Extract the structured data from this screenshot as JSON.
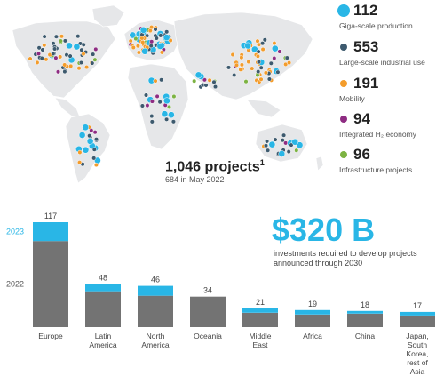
{
  "colors": {
    "giga": "#29b6e6",
    "industrial": "#3d5a6e",
    "mobility": "#f39c2c",
    "integrated": "#8e2c82",
    "infrastructure": "#7cb342",
    "bar_2022": "#737373",
    "bar_2023": "#29b6e6",
    "invest": "#29b6e6"
  },
  "legend": [
    {
      "count": "112",
      "label": "Giga-scale production",
      "color": "#29b6e6",
      "icon": "large-blue-circle"
    },
    {
      "count": "553",
      "label": "Large-scale industrial use",
      "color": "#3d5a6e",
      "icon": "dark-dot"
    },
    {
      "count": "191",
      "label": "Mobility",
      "color": "#f39c2c",
      "icon": "orange-dot"
    },
    {
      "count": "94",
      "label": "Integrated H₂ economy",
      "color": "#8e2c82",
      "icon": "purple-dot"
    },
    {
      "count": "96",
      "label": "Infrastructure projects",
      "color": "#7cb342",
      "icon": "green-dot"
    }
  ],
  "map": {
    "total": "1,046 projects",
    "footnote_mark": "1",
    "subtitle": "684 in May 2022"
  },
  "investment": {
    "amount": "$320 B",
    "text": "investments required to develop projects announced through 2030"
  },
  "chart_data": {
    "type": "bar",
    "stacked": true,
    "categories": [
      "Europe",
      "Latin America",
      "North America",
      "Oceania",
      "Middle East",
      "Africa",
      "China",
      "Japan, South Korea, rest of Asia"
    ],
    "category_lines": [
      [
        "Europe"
      ],
      [
        "Latin",
        "America"
      ],
      [
        "North",
        "America"
      ],
      [
        "Oceania"
      ],
      [
        "Middle",
        "East"
      ],
      [
        "Africa"
      ],
      [
        "China"
      ],
      [
        "Japan,",
        "South",
        "Korea,",
        "rest of",
        "Asia"
      ]
    ],
    "totals": [
      117,
      48,
      46,
      34,
      21,
      19,
      18,
      17
    ],
    "series": [
      {
        "name": "2022",
        "values": [
          96,
          40,
          35,
          34,
          16,
          14,
          15,
          13
        ]
      },
      {
        "name": "2023",
        "values": [
          21,
          8,
          11,
          0,
          5,
          5,
          3,
          4
        ]
      }
    ],
    "ylim": [
      0,
      117
    ],
    "grid": false,
    "legend": "left"
  }
}
